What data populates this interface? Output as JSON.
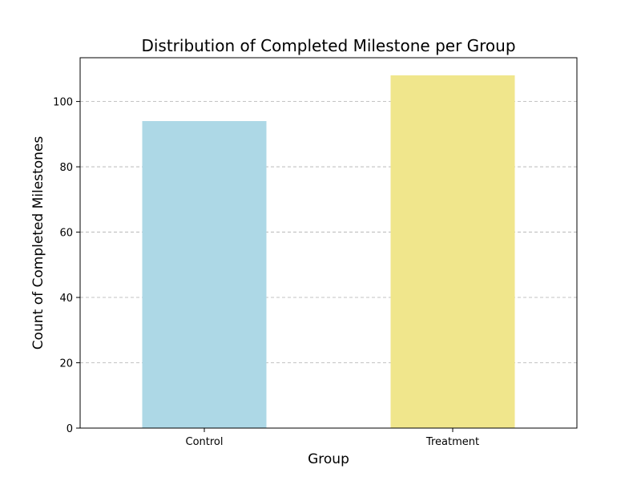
{
  "chart_data": {
    "type": "bar",
    "title": "Distribution of Completed Milestone per Group",
    "xlabel": "Group",
    "ylabel": "Count of Completed Milestones",
    "categories": [
      "Control",
      "Treatment"
    ],
    "values": [
      94,
      108
    ],
    "colors": [
      "#add8e6",
      "#f0e68c"
    ],
    "ylim": [
      0,
      113.4
    ],
    "yticks": [
      0,
      20,
      40,
      60,
      80,
      100
    ],
    "grid": "y-dashed",
    "legend": "none"
  }
}
